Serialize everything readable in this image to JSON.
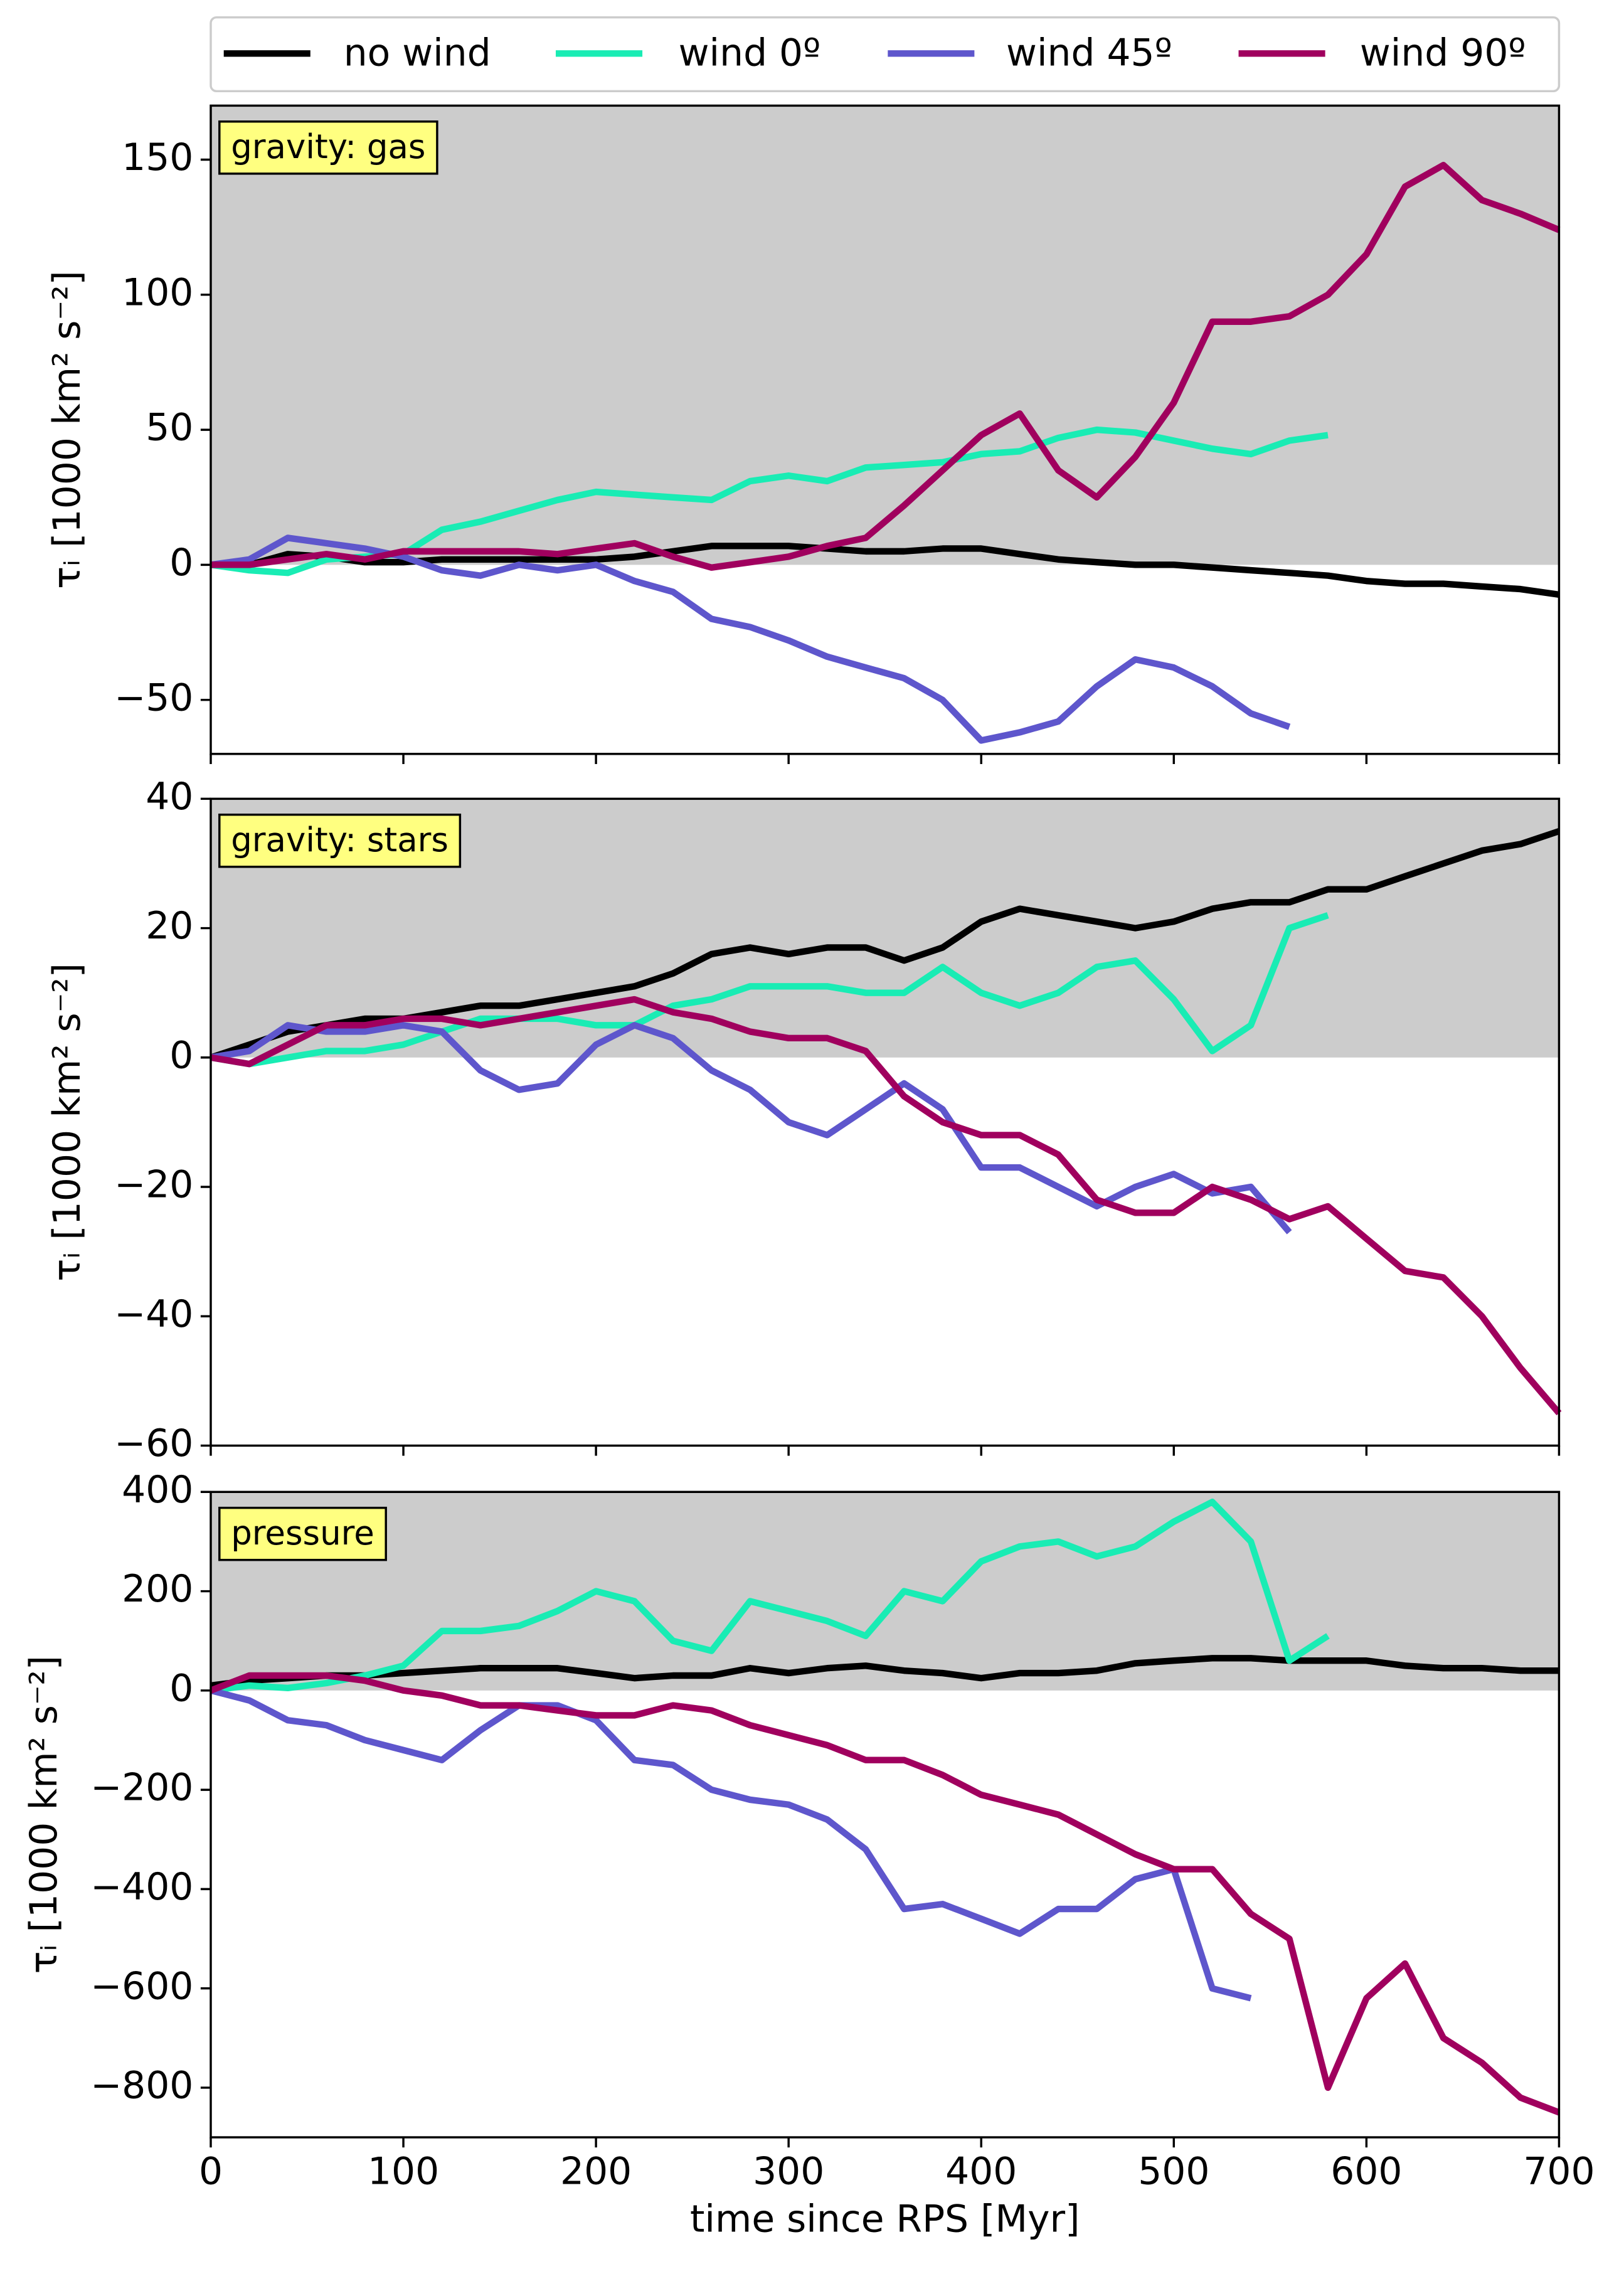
{
  "chart_data": [
    {
      "type": "line",
      "annotation": "gravity: gas",
      "ylabel": "τᵢ [1000 km² s⁻²]",
      "shade_above_zero_color": "#cccccc",
      "xlim": [
        0,
        700
      ],
      "xticks": [
        0,
        100,
        200,
        300,
        400,
        500,
        600,
        700
      ],
      "ylim": [
        -70,
        170
      ],
      "yticks": [
        {
          "value": -50,
          "label": "−50"
        },
        0,
        50,
        100,
        150
      ],
      "x": [
        0,
        20,
        40,
        60,
        80,
        100,
        120,
        140,
        160,
        180,
        200,
        220,
        240,
        260,
        280,
        300,
        320,
        340,
        360,
        380,
        400,
        420,
        440,
        460,
        480,
        500,
        520,
        540,
        560,
        580,
        600,
        620,
        640,
        660,
        680,
        700
      ],
      "series": [
        {
          "name": "no wind",
          "color": "#000000",
          "values": [
            0,
            0,
            4,
            3,
            1,
            1,
            2,
            2,
            2,
            2,
            2,
            3,
            5,
            7,
            7,
            7,
            6,
            5,
            5,
            6,
            6,
            4,
            2,
            1,
            0,
            0,
            -1,
            -2,
            -3,
            -4,
            -6,
            -7,
            -7,
            -8,
            -9,
            -11
          ]
        },
        {
          "name": "wind 0º",
          "color": "#19ecb4",
          "values": [
            0,
            -2,
            -3,
            2,
            3,
            4,
            13,
            16,
            20,
            24,
            27,
            26,
            25,
            24,
            31,
            33,
            31,
            36,
            37,
            38,
            41,
            42,
            47,
            50,
            49,
            46,
            43,
            41,
            46,
            48,
            null,
            null,
            null,
            null,
            null,
            null
          ]
        },
        {
          "name": "wind 45º",
          "color": "#5e56cc",
          "values": [
            0,
            2,
            10,
            8,
            6,
            3,
            -2,
            -4,
            0,
            -2,
            0,
            -6,
            -10,
            -20,
            -23,
            -28,
            -34,
            -38,
            -42,
            -50,
            -65,
            -62,
            -58,
            -45,
            -35,
            -38,
            -45,
            -55,
            -60,
            null,
            null,
            null,
            null,
            null,
            null,
            null
          ]
        },
        {
          "name": "wind 90º",
          "color": "#a0005e",
          "values": [
            0,
            0,
            2,
            4,
            2,
            5,
            5,
            5,
            5,
            4,
            6,
            8,
            3,
            -1,
            1,
            3,
            7,
            10,
            22,
            35,
            48,
            56,
            35,
            25,
            40,
            60,
            90,
            90,
            92,
            100,
            115,
            140,
            148,
            135,
            130,
            124
          ]
        }
      ]
    },
    {
      "type": "line",
      "annotation": "gravity: stars",
      "ylabel": "τᵢ [1000 km² s⁻²]",
      "shade_above_zero_color": "#cccccc",
      "xlim": [
        0,
        700
      ],
      "xticks": [
        0,
        100,
        200,
        300,
        400,
        500,
        600,
        700
      ],
      "ylim": [
        -60,
        40
      ],
      "yticks": [
        {
          "value": -60,
          "label": "−60"
        },
        {
          "value": -40,
          "label": "−40"
        },
        {
          "value": -20,
          "label": "−20"
        },
        0,
        20,
        40
      ],
      "x": [
        0,
        20,
        40,
        60,
        80,
        100,
        120,
        140,
        160,
        180,
        200,
        220,
        240,
        260,
        280,
        300,
        320,
        340,
        360,
        380,
        400,
        420,
        440,
        460,
        480,
        500,
        520,
        540,
        560,
        580,
        600,
        620,
        640,
        660,
        680,
        700
      ],
      "series": [
        {
          "name": "no wind",
          "color": "#000000",
          "values": [
            0,
            2,
            4,
            5,
            6,
            6,
            7,
            8,
            8,
            9,
            10,
            11,
            13,
            16,
            17,
            16,
            17,
            17,
            15,
            17,
            21,
            23,
            22,
            21,
            20,
            21,
            23,
            24,
            24,
            26,
            26,
            28,
            30,
            32,
            33,
            35
          ]
        },
        {
          "name": "wind 0º",
          "color": "#19ecb4",
          "values": [
            0,
            -1,
            0,
            1,
            1,
            2,
            4,
            6,
            6,
            6,
            5,
            5,
            8,
            9,
            11,
            11,
            11,
            10,
            10,
            14,
            10,
            8,
            10,
            14,
            15,
            9,
            1,
            5,
            20,
            22,
            null,
            null,
            null,
            null,
            null,
            null
          ]
        },
        {
          "name": "wind 45º",
          "color": "#5e56cc",
          "values": [
            0,
            1,
            5,
            4,
            4,
            5,
            4,
            -2,
            -5,
            -4,
            2,
            5,
            3,
            -2,
            -5,
            -10,
            -12,
            -8,
            -4,
            -8,
            -17,
            -17,
            -20,
            -23,
            -20,
            -18,
            -21,
            -20,
            -27,
            null,
            null,
            null,
            null,
            null,
            null,
            null
          ]
        },
        {
          "name": "wind 90º",
          "color": "#a0005e",
          "values": [
            0,
            -1,
            2,
            5,
            5,
            6,
            6,
            5,
            6,
            7,
            8,
            9,
            7,
            6,
            4,
            3,
            3,
            1,
            -6,
            -10,
            -12,
            -12,
            -15,
            -22,
            -24,
            -24,
            -20,
            -22,
            -25,
            -23,
            -28,
            -33,
            -34,
            -40,
            -48,
            -55
          ]
        }
      ]
    },
    {
      "type": "line",
      "annotation": "pressure",
      "ylabel": "τᵢ [1000 km² s⁻²]",
      "xlabel": "time since RPS [Myr]",
      "shade_above_zero_color": "#cccccc",
      "xlim": [
        0,
        700
      ],
      "xticks": [
        0,
        100,
        200,
        300,
        400,
        500,
        600,
        700
      ],
      "ylim": [
        -900,
        400
      ],
      "yticks": [
        {
          "value": -800,
          "label": "−800"
        },
        {
          "value": -600,
          "label": "−600"
        },
        {
          "value": -400,
          "label": "−400"
        },
        {
          "value": -200,
          "label": "−200"
        },
        0,
        200,
        400
      ],
      "x": [
        0,
        20,
        40,
        60,
        80,
        100,
        120,
        140,
        160,
        180,
        200,
        220,
        240,
        260,
        280,
        300,
        320,
        340,
        360,
        380,
        400,
        420,
        440,
        460,
        480,
        500,
        520,
        540,
        560,
        580,
        600,
        620,
        640,
        660,
        680,
        700
      ],
      "series": [
        {
          "name": "no wind",
          "color": "#000000",
          "values": [
            10,
            20,
            25,
            30,
            30,
            35,
            40,
            45,
            45,
            45,
            35,
            25,
            30,
            30,
            45,
            35,
            45,
            50,
            40,
            35,
            25,
            35,
            35,
            40,
            55,
            60,
            65,
            65,
            60,
            60,
            60,
            50,
            45,
            45,
            40,
            40
          ]
        },
        {
          "name": "wind 0º",
          "color": "#19ecb4",
          "values": [
            0,
            10,
            5,
            15,
            30,
            50,
            120,
            120,
            130,
            160,
            200,
            180,
            100,
            80,
            180,
            160,
            140,
            110,
            200,
            180,
            260,
            290,
            300,
            270,
            290,
            340,
            380,
            300,
            60,
            110,
            null,
            null,
            null,
            null,
            null,
            null
          ]
        },
        {
          "name": "wind 45º",
          "color": "#5e56cc",
          "values": [
            0,
            -20,
            -60,
            -70,
            -100,
            -120,
            -140,
            -80,
            -30,
            -30,
            -60,
            -140,
            -150,
            -200,
            -220,
            -230,
            -260,
            -320,
            -440,
            -430,
            -460,
            -490,
            -440,
            -440,
            -380,
            -360,
            -600,
            -620,
            null,
            null,
            null,
            null,
            null,
            null,
            null,
            null
          ]
        },
        {
          "name": "wind 90º",
          "color": "#a0005e",
          "values": [
            0,
            30,
            30,
            30,
            20,
            0,
            -10,
            -30,
            -30,
            -40,
            -50,
            -50,
            -30,
            -40,
            -70,
            -90,
            -110,
            -140,
            -140,
            -170,
            -210,
            -230,
            -250,
            -290,
            -330,
            -360,
            -360,
            -450,
            -500,
            -800,
            -620,
            -550,
            -700,
            -750,
            -820,
            -850
          ]
        }
      ]
    }
  ]
}
